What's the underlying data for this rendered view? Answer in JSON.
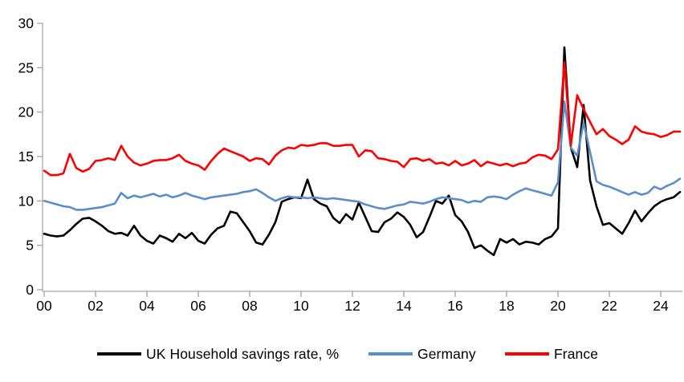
{
  "chart_data": {
    "type": "line",
    "title": "",
    "x_start": "2000Q1",
    "x_end": "2024Q4",
    "x_frequency": "quarterly",
    "x_tick_labels": [
      "00",
      "02",
      "04",
      "06",
      "08",
      "10",
      "12",
      "14",
      "16",
      "18",
      "20",
      "22",
      "24"
    ],
    "y_ticks": [
      0,
      5,
      10,
      15,
      20,
      25,
      30
    ],
    "ylim": [
      0,
      30
    ],
    "grid": false,
    "legend_position": "bottom",
    "axis_color": "#A6A6A6",
    "label_color": "#000000",
    "series": [
      {
        "name": "UK Household savings rate, %",
        "color": "#000000",
        "values": [
          6.3,
          6.1,
          6.0,
          6.1,
          6.7,
          7.4,
          8.0,
          8.1,
          7.7,
          7.2,
          6.6,
          6.3,
          6.4,
          6.1,
          7.2,
          6.1,
          5.5,
          5.2,
          6.1,
          5.8,
          5.4,
          6.3,
          5.8,
          6.4,
          5.5,
          5.2,
          6.2,
          6.9,
          7.2,
          8.8,
          8.6,
          7.6,
          6.6,
          5.3,
          5.1,
          6.2,
          7.6,
          9.9,
          10.2,
          10.4,
          10.3,
          12.4,
          10.2,
          9.7,
          9.4,
          8.1,
          7.5,
          8.5,
          7.9,
          9.8,
          8.2,
          6.6,
          6.5,
          7.6,
          8.0,
          8.7,
          8.2,
          7.3,
          5.9,
          6.5,
          8.2,
          10.0,
          9.7,
          10.6,
          8.4,
          7.7,
          6.5,
          4.7,
          5.0,
          4.4,
          3.9,
          5.7,
          5.3,
          5.7,
          5.1,
          5.4,
          5.3,
          5.1,
          5.7,
          6.0,
          6.9,
          27.3,
          16.0,
          13.8,
          20.8,
          12.3,
          9.4,
          7.3,
          7.5,
          6.9,
          6.3,
          7.5,
          8.9,
          7.7,
          8.6,
          9.4,
          9.9,
          10.2,
          10.4,
          11.0
        ]
      },
      {
        "name": "Germany",
        "color": "#5B8DC8",
        "values": [
          10.0,
          9.8,
          9.6,
          9.4,
          9.3,
          9.0,
          9.0,
          9.1,
          9.2,
          9.3,
          9.5,
          9.7,
          10.9,
          10.3,
          10.6,
          10.4,
          10.6,
          10.8,
          10.5,
          10.7,
          10.4,
          10.6,
          10.9,
          10.6,
          10.4,
          10.2,
          10.4,
          10.5,
          10.6,
          10.7,
          10.8,
          11.0,
          11.1,
          11.3,
          10.9,
          10.4,
          10.0,
          10.3,
          10.5,
          10.4,
          10.4,
          10.3,
          10.4,
          10.3,
          10.2,
          10.3,
          10.2,
          10.1,
          10.0,
          9.9,
          9.6,
          9.4,
          9.2,
          9.1,
          9.3,
          9.5,
          9.6,
          9.9,
          9.8,
          9.7,
          9.9,
          10.2,
          10.4,
          10.3,
          10.2,
          10.1,
          9.8,
          10.0,
          9.9,
          10.4,
          10.5,
          10.4,
          10.2,
          10.7,
          11.1,
          11.4,
          11.2,
          11.0,
          10.8,
          10.6,
          12.1,
          21.2,
          16.0,
          15.1,
          18.8,
          15.5,
          12.2,
          11.8,
          11.6,
          11.3,
          11.0,
          10.7,
          11.0,
          10.7,
          10.9,
          11.6,
          11.3,
          11.7,
          12.0,
          12.5
        ]
      },
      {
        "name": "France",
        "color": "#FF0000",
        "values": [
          13.4,
          12.9,
          12.9,
          13.1,
          15.3,
          13.7,
          13.3,
          13.6,
          14.5,
          14.6,
          14.8,
          14.6,
          16.2,
          15.0,
          14.3,
          14.0,
          14.2,
          14.5,
          14.6,
          14.6,
          14.8,
          15.2,
          14.5,
          14.2,
          14.0,
          13.5,
          14.5,
          15.3,
          15.9,
          15.6,
          15.3,
          15.0,
          14.5,
          14.8,
          14.7,
          14.1,
          15.1,
          15.7,
          16.0,
          15.9,
          16.3,
          16.2,
          16.3,
          16.5,
          16.5,
          16.2,
          16.2,
          16.3,
          16.3,
          15.0,
          15.7,
          15.6,
          14.8,
          14.7,
          14.5,
          14.4,
          13.8,
          14.7,
          14.8,
          14.5,
          14.7,
          14.2,
          14.3,
          14.0,
          14.5,
          14.0,
          14.2,
          14.6,
          13.9,
          14.4,
          14.2,
          14.0,
          14.2,
          13.9,
          14.2,
          14.3,
          14.9,
          15.2,
          15.1,
          14.7,
          15.8,
          25.6,
          16.2,
          21.9,
          20.3,
          18.9,
          17.5,
          18.1,
          17.3,
          16.9,
          16.4,
          16.9,
          18.4,
          17.8,
          17.6,
          17.5,
          17.2,
          17.4,
          17.8,
          17.8
        ]
      }
    ]
  }
}
